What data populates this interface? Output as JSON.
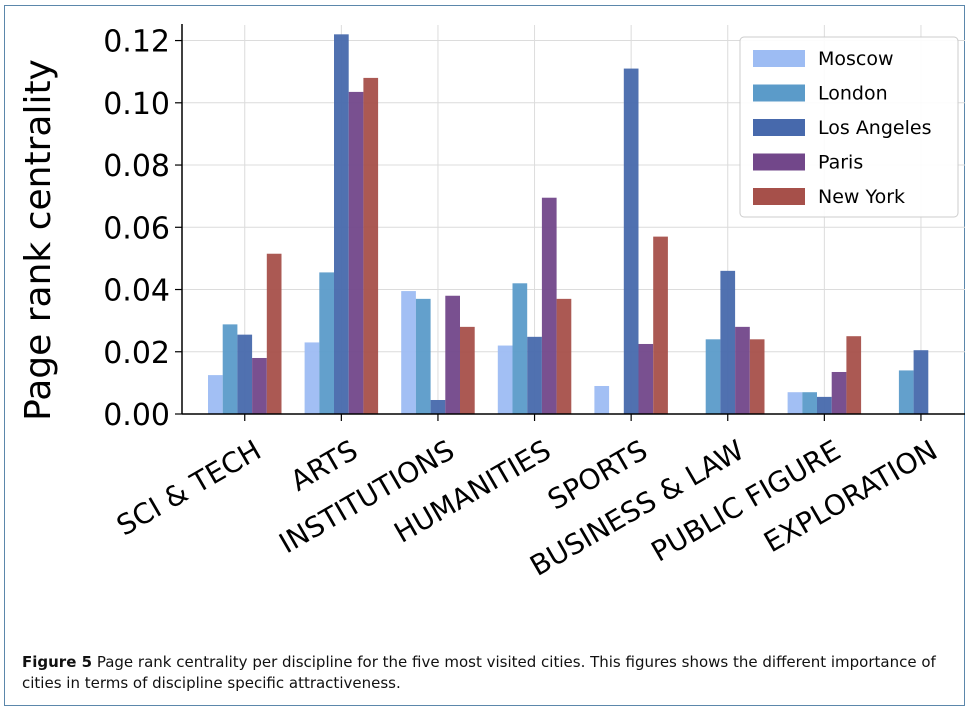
{
  "chart_data": {
    "type": "bar",
    "ylabel": "Page rank centrality",
    "xlabel": "",
    "ylim": [
      0,
      0.125
    ],
    "yticks": [
      "0.00",
      "0.02",
      "0.04",
      "0.06",
      "0.08",
      "0.10",
      "0.12"
    ],
    "grid": true,
    "legend_position": "top-right",
    "categories": [
      "SCI & TECH",
      "ARTS",
      "INSTITUTIONS",
      "HUMANITIES",
      "SPORTS",
      "BUSINESS & LAW",
      "PUBLIC FIGURE",
      "EXPLORATION"
    ],
    "series": [
      {
        "name": "Moscow",
        "color": "#9dbcf3",
        "values": [
          0.0125,
          0.023,
          0.0395,
          0.022,
          0.009,
          0,
          0.007,
          0
        ]
      },
      {
        "name": "London",
        "color": "#5b9bc9",
        "values": [
          0.0288,
          0.0455,
          0.037,
          0.042,
          0,
          0.024,
          0.007,
          0.014
        ]
      },
      {
        "name": "Los Angeles",
        "color": "#4769ac",
        "values": [
          0.0255,
          0.122,
          0.0045,
          0.0248,
          0.111,
          0.046,
          0.0055,
          0.0205
        ]
      },
      {
        "name": "Paris",
        "color": "#72478a",
        "values": [
          0.018,
          0.1035,
          0.038,
          0.0695,
          0.0225,
          0.028,
          0.0135,
          0
        ]
      },
      {
        "name": "New York",
        "color": "#a6504a",
        "values": [
          0.0515,
          0.108,
          0.028,
          0.037,
          0.057,
          0.024,
          0.025,
          0
        ]
      }
    ]
  },
  "caption": {
    "label": "Figure 5",
    "text": "Page rank centrality per discipline for the five most visited cities. This figures shows the different importance of cities in terms of discipline specific attractiveness."
  }
}
